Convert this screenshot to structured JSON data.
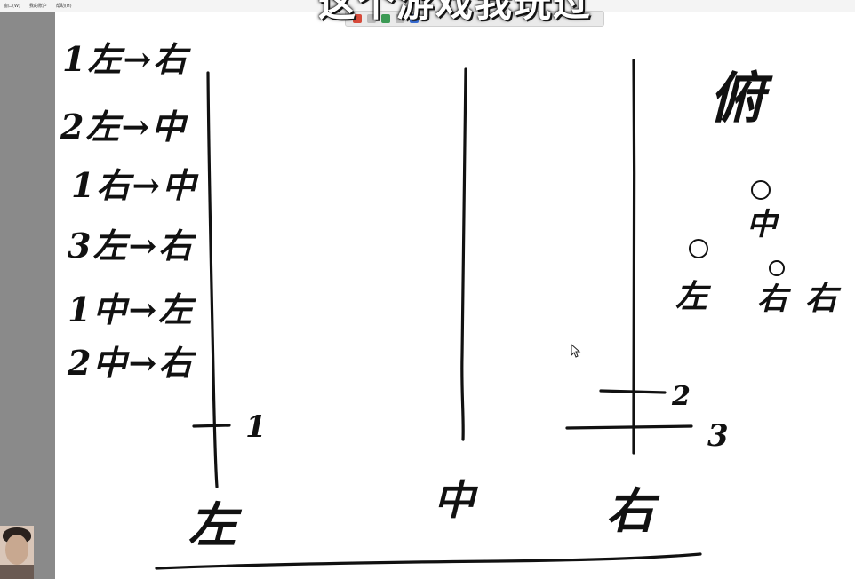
{
  "caption": "这个游戏我玩过",
  "menu": [
    "窗口(W)",
    "我的账户",
    "帮助(H)"
  ],
  "moves": [
    "1左→右",
    "2左→中",
    "1右→中",
    "3左→右",
    "1中→左",
    "2中→右"
  ],
  "rods": {
    "left_label": "左",
    "middle_label": "中",
    "right_label": "右"
  },
  "disk_numbers": [
    "1",
    "2",
    "3"
  ],
  "side_note": {
    "title": "俯",
    "top_label": "中",
    "left_label": "左",
    "mid_label": "右",
    "right_label": "右"
  },
  "colors": {
    "sidebar": "#8a8a8a",
    "ink": "#111111",
    "canvas": "#ffffff"
  },
  "icons": [
    "cursor-icon",
    "smiley-icon"
  ]
}
